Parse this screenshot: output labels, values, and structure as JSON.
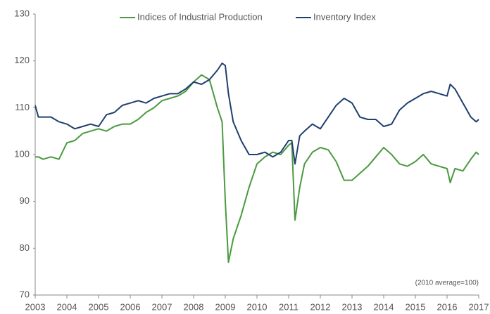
{
  "chart_data": {
    "type": "line",
    "x": [
      2003,
      2003.1,
      2003.25,
      2003.5,
      2003.75,
      2004,
      2004.25,
      2004.5,
      2004.75,
      2005,
      2005.25,
      2005.5,
      2005.75,
      2006,
      2006.25,
      2006.5,
      2006.75,
      2007,
      2007.25,
      2007.5,
      2007.75,
      2008,
      2008.25,
      2008.5,
      2008.75,
      2008.9,
      2009,
      2009.1,
      2009.25,
      2009.5,
      2009.75,
      2010,
      2010.25,
      2010.5,
      2010.75,
      2011,
      2011.1,
      2011.2,
      2011.35,
      2011.5,
      2011.75,
      2012,
      2012.25,
      2012.5,
      2012.75,
      2013,
      2013.25,
      2013.5,
      2013.75,
      2014,
      2014.25,
      2014.5,
      2014.75,
      2015,
      2015.25,
      2015.5,
      2015.75,
      2016,
      2016.1,
      2016.25,
      2016.5,
      2016.75,
      2016.92,
      2017
    ],
    "series": [
      {
        "name": "Indices of Industrial Production",
        "color": "#4a9a3f",
        "values": [
          99.5,
          99.5,
          99,
          99.5,
          99,
          102.5,
          103,
          104.5,
          105,
          105.5,
          105,
          106,
          106.5,
          106.5,
          107.5,
          109,
          110,
          111.5,
          112,
          112.5,
          113.5,
          115.5,
          117,
          116,
          110,
          107,
          90,
          77,
          82,
          87,
          93,
          98,
          99.5,
          100.5,
          100,
          102,
          102.5,
          86,
          93,
          98,
          100.5,
          101.5,
          101,
          98.5,
          94.5,
          94.5,
          96,
          97.5,
          99.5,
          101.5,
          100,
          98,
          97.5,
          98.5,
          100,
          98,
          97.5,
          97,
          94,
          97,
          96.5,
          99,
          100.5,
          100
        ]
      },
      {
        "name": "Inventory Index",
        "color": "#1f3f6e",
        "values": [
          110.5,
          108,
          108,
          108,
          107,
          106.5,
          105.5,
          106,
          106.5,
          106,
          108.5,
          109,
          110.5,
          111,
          111.5,
          111,
          112,
          112.5,
          113,
          113,
          114,
          115.5,
          115,
          116,
          118,
          119.5,
          119,
          113,
          107,
          103,
          100,
          100,
          100.5,
          99.5,
          100.5,
          103,
          103,
          98,
          104,
          105,
          106.5,
          105.5,
          108,
          110.5,
          112,
          111,
          108,
          107.5,
          107.5,
          106,
          106.5,
          109.5,
          111,
          112,
          113,
          113.5,
          113,
          112.5,
          115,
          114,
          111,
          108,
          107,
          107.5
        ]
      }
    ],
    "xlim": [
      2003,
      2017
    ],
    "xticks": [
      2003,
      2004,
      2005,
      2006,
      2007,
      2008,
      2009,
      2010,
      2011,
      2012,
      2013,
      2014,
      2015,
      2016,
      2017
    ],
    "ylim": [
      70,
      130
    ],
    "yticks": [
      70,
      80,
      90,
      100,
      110,
      120,
      130
    ],
    "annotation": "(2010 average=100)",
    "grid": false,
    "legend": "top"
  }
}
